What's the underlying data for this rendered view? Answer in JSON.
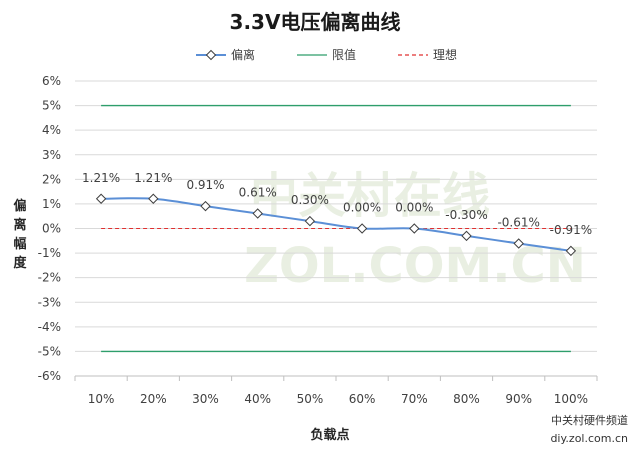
{
  "chart_data": {
    "type": "line",
    "title": "3.3V电压偏离曲线",
    "xlabel": "负载点",
    "ylabel": "偏离幅度",
    "categories": [
      "10%",
      "20%",
      "30%",
      "40%",
      "50%",
      "60%",
      "70%",
      "80%",
      "90%",
      "100%"
    ],
    "ylim": [
      -6,
      6
    ],
    "yticks": [
      "6%",
      "5%",
      "4%",
      "3%",
      "2%",
      "1%",
      "0%",
      "-1%",
      "-2%",
      "-3%",
      "-4%",
      "-5%",
      "-6%"
    ],
    "grid": true,
    "legend_position": "top",
    "series": [
      {
        "name": "偏离",
        "color": "#5b8fd6",
        "marker": "diamond",
        "values": [
          1.21,
          1.21,
          0.91,
          0.61,
          0.3,
          0.0,
          0.0,
          -0.3,
          -0.61,
          -0.91
        ],
        "labels": [
          "1.21%",
          "1.21%",
          "0.91%",
          "0.61%",
          "0.30%",
          "0.00%",
          "0.00%",
          "-0.30%",
          "-0.61%",
          "-0.91%"
        ]
      },
      {
        "name": "限值",
        "color": "#2e9e6b",
        "upper": 5,
        "lower": -5
      },
      {
        "name": "理想",
        "color": "#e03030",
        "value": 0
      }
    ]
  },
  "watermark": {
    "cn": "中关村在线",
    "en": "ZOL.COM.CN"
  },
  "credit": {
    "line1": "中关村硬件频道",
    "line2": "diy.zol.com.cn"
  }
}
